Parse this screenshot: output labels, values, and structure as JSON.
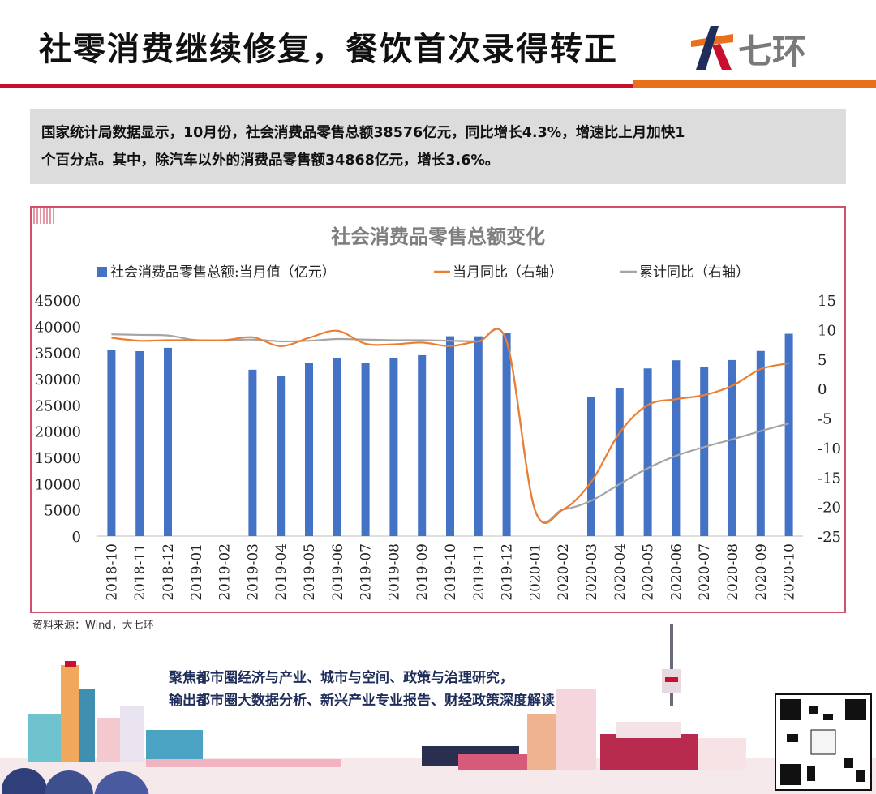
{
  "header": {
    "title": "社零消费继续修复，餐饮首次录得转正",
    "logo_text": "七环"
  },
  "summary": {
    "line1": "国家统计局数据显示，10月份，社会消费品零售总额38576亿元，同比增长4.3%，增速比上月加快1",
    "line2": "个百分点。其中，除汽车以外的消费品零售额34868亿元，增长3.6%。"
  },
  "chart_data": {
    "type": "bar",
    "title": "社会消费品零售总额变化",
    "categories": [
      "2018-10",
      "2018-11",
      "2018-12",
      "2019-01",
      "2019-02",
      "2019-03",
      "2019-04",
      "2019-05",
      "2019-06",
      "2019-07",
      "2019-08",
      "2019-09",
      "2019-10",
      "2019-11",
      "2019-12",
      "2020-01",
      "2020-02",
      "2020-03",
      "2020-04",
      "2020-05",
      "2020-06",
      "2020-07",
      "2020-08",
      "2020-09",
      "2020-10"
    ],
    "series": [
      {
        "name": "社会消费品零售总额:当月值（亿元）",
        "type": "bar",
        "axis": "left",
        "color": "#4472c4",
        "values": [
          35534,
          35260,
          35893,
          null,
          null,
          31726,
          30586,
          32956,
          33878,
          33073,
          33896,
          34495,
          38104,
          38094,
          38777,
          null,
          null,
          26450,
          28178,
          31973,
          33526,
          32203,
          33571,
          35295,
          38576
        ]
      },
      {
        "name": "当月同比（右轴）",
        "type": "line",
        "axis": "right",
        "color": "#ed7d31",
        "values": [
          8.6,
          8.1,
          8.2,
          8.2,
          8.2,
          8.7,
          7.2,
          8.6,
          9.8,
          7.6,
          7.5,
          7.8,
          7.2,
          8.0,
          8.0,
          -20.5,
          -20.5,
          -15.8,
          -7.5,
          -2.8,
          -1.8,
          -1.1,
          0.5,
          3.3,
          4.3
        ]
      },
      {
        "name": "累计同比（右轴）",
        "type": "line",
        "axis": "right",
        "color": "#a5a5a5",
        "values": [
          9.2,
          9.1,
          9.0,
          8.2,
          8.2,
          8.3,
          8.0,
          8.1,
          8.4,
          8.3,
          8.2,
          8.2,
          8.1,
          8.0,
          8.0,
          -20.5,
          -20.5,
          -19.0,
          -16.2,
          -13.5,
          -11.4,
          -9.9,
          -8.6,
          -7.2,
          -5.9
        ]
      }
    ],
    "ylim_left": [
      0,
      45000
    ],
    "yticks_left": [
      "45000",
      "40000",
      "35000",
      "30000",
      "25000",
      "20000",
      "15000",
      "10000",
      "5000",
      "0"
    ],
    "ylim_right": [
      -25,
      15
    ],
    "yticks_right": [
      "15",
      "10",
      "5",
      "0",
      "-5",
      "-10",
      "-15",
      "-20",
      "-25"
    ],
    "legend_position": "top",
    "grid": false
  },
  "source": "资料来源：Wind，大七环",
  "footer": {
    "line1": "聚焦都市圈经济与产业、城市与空间、政策与治理研究，",
    "line2": "输出都市圈大数据分析、新兴产业专业报告、财经政策深度解读"
  }
}
